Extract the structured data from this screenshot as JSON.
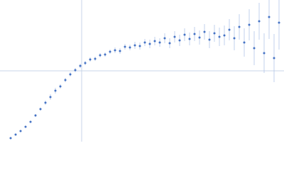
{
  "chart_data": {
    "type": "scatter",
    "x": [
      15,
      22,
      29,
      36,
      43,
      50,
      57,
      64,
      71,
      78,
      85,
      92,
      99,
      106,
      113,
      120,
      127,
      134,
      141,
      148,
      155,
      162,
      169,
      176,
      183,
      190,
      197,
      204,
      211,
      218,
      225,
      232,
      239,
      246,
      253,
      260,
      267,
      274,
      281,
      288,
      295,
      302,
      309,
      316,
      323,
      330,
      337,
      344,
      351,
      358,
      365,
      372,
      379,
      386,
      393
    ],
    "series": [
      {
        "color": "#4472c4",
        "error_color": "#b3c6e8",
        "values": [
          5,
          10,
          15,
          21,
          28,
          37,
          46,
          55,
          63,
          72,
          78,
          87,
          95,
          101,
          107,
          111,
          116,
          117,
          122,
          123,
          127,
          129,
          128,
          134,
          133,
          136,
          135,
          140,
          138,
          142,
          140,
          146,
          139,
          148,
          143,
          151,
          145,
          152,
          147,
          155,
          144,
          153,
          148,
          150,
          158,
          146,
          162,
          140,
          165,
          132,
          170,
          125,
          176,
          118,
          168
        ],
        "errors": [
          1,
          1,
          1,
          1,
          1.5,
          2,
          2,
          3,
          4,
          4,
          3,
          3,
          3,
          3,
          3,
          3,
          3,
          3,
          3,
          3,
          3,
          4,
          4,
          4,
          4,
          5,
          5,
          5,
          6,
          6,
          6,
          7,
          7,
          8,
          8,
          9,
          9,
          10,
          10,
          11,
          12,
          12,
          13,
          14,
          15,
          17,
          18,
          20,
          22,
          24,
          26,
          28,
          31,
          34,
          38
        ]
      }
    ],
    "xlim": [
      0,
      400
    ],
    "ylim": [
      0,
      200
    ],
    "reference_lines": {
      "x": [
        115
      ],
      "y": [
        100
      ],
      "color": "#c8d4e8"
    }
  }
}
